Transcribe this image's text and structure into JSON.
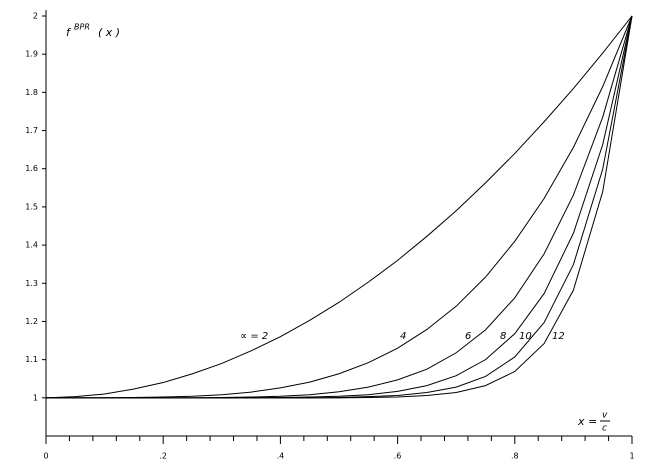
{
  "chart_data": {
    "type": "line",
    "y_label": {
      "base": "f",
      "sup": "BPR",
      "arg": "( x )"
    },
    "x_label": {
      "lhs": "x =",
      "num": "v",
      "den": "c"
    },
    "x": [
      0,
      0.05,
      0.1,
      0.15,
      0.2,
      0.25,
      0.3,
      0.35,
      0.4,
      0.45,
      0.5,
      0.55,
      0.6,
      0.65,
      0.7,
      0.75,
      0.8,
      0.85,
      0.9,
      0.95,
      1
    ],
    "series": [
      {
        "name": "∝ = 2",
        "color": "#000000",
        "values": [
          1,
          1.003,
          1.01,
          1.023,
          1.04,
          1.063,
          1.09,
          1.123,
          1.16,
          1.203,
          1.25,
          1.303,
          1.36,
          1.423,
          1.49,
          1.563,
          1.64,
          1.723,
          1.81,
          1.903,
          2
        ]
      },
      {
        "name": "4",
        "color": "#000000",
        "values": [
          1,
          1,
          1,
          1.001,
          1.002,
          1.004,
          1.008,
          1.015,
          1.026,
          1.041,
          1.063,
          1.092,
          1.13,
          1.179,
          1.24,
          1.316,
          1.41,
          1.522,
          1.656,
          1.815,
          2
        ]
      },
      {
        "name": "6",
        "color": "#000000",
        "values": [
          1,
          1,
          1,
          1,
          1,
          1,
          1.001,
          1.002,
          1.004,
          1.008,
          1.016,
          1.028,
          1.047,
          1.075,
          1.118,
          1.178,
          1.262,
          1.377,
          1.531,
          1.735,
          2
        ]
      },
      {
        "name": "8",
        "color": "#000000",
        "values": [
          1,
          1,
          1,
          1,
          1,
          1,
          1,
          1,
          1.001,
          1.002,
          1.004,
          1.008,
          1.017,
          1.032,
          1.058,
          1.1,
          1.168,
          1.273,
          1.431,
          1.663,
          2
        ]
      },
      {
        "name": "10",
        "color": "#000000",
        "values": [
          1,
          1,
          1,
          1,
          1,
          1,
          1,
          1,
          1,
          1,
          1.001,
          1.003,
          1.006,
          1.014,
          1.028,
          1.056,
          1.107,
          1.197,
          1.349,
          1.599,
          2
        ]
      },
      {
        "name": "12",
        "color": "#000000",
        "values": [
          1,
          1,
          1,
          1,
          1,
          1,
          1,
          1,
          1,
          1,
          1,
          1.001,
          1.002,
          1.006,
          1.014,
          1.032,
          1.069,
          1.142,
          1.282,
          1.54,
          2
        ]
      }
    ],
    "xlim": [
      0,
      1
    ],
    "ylim": [
      0.9,
      2
    ],
    "xticks": [
      0,
      {
        "value": 0.2,
        "label": ".2"
      },
      {
        "value": 0.4,
        "label": ".4"
      },
      {
        "value": 0.6,
        "label": ".6"
      },
      {
        "value": 0.8,
        "label": ".8"
      },
      1
    ],
    "xminorticks": [
      0.04,
      0.08,
      0.12,
      0.16,
      0.24,
      0.28,
      0.32,
      0.36,
      0.44,
      0.48,
      0.52,
      0.56,
      0.64,
      0.68,
      0.72,
      0.76,
      0.84,
      0.88,
      0.92,
      0.96
    ],
    "yticks": [
      1,
      1.1,
      1.2,
      1.3,
      1.4,
      1.5,
      1.6,
      1.7,
      1.8,
      1.9,
      2
    ],
    "grid": false
  }
}
